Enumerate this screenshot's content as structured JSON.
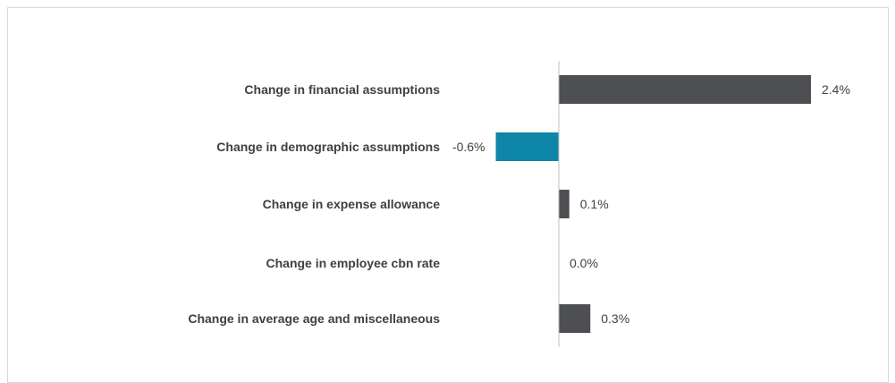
{
  "chart_data": {
    "type": "bar",
    "orientation": "horizontal",
    "categories": [
      "Change in financial assumptions",
      "Change in demographic assumptions",
      "Change in expense allowance",
      "Change in employee cbn rate",
      "Change in average age and miscellaneous"
    ],
    "values": [
      2.4,
      -0.6,
      0.1,
      0.0,
      0.3
    ],
    "value_labels": [
      "2.4%",
      "-0.6%",
      "0.1%",
      "0.0%",
      "0.3%"
    ],
    "title": "",
    "xlabel": "",
    "ylabel": "",
    "xlim": [
      -0.6,
      2.4
    ],
    "grid": false,
    "legend": "none",
    "colors": {
      "positive": "#4d4f53",
      "negative": "#0d86a8",
      "axis": "#bfbfbf",
      "text": "#404040"
    }
  }
}
